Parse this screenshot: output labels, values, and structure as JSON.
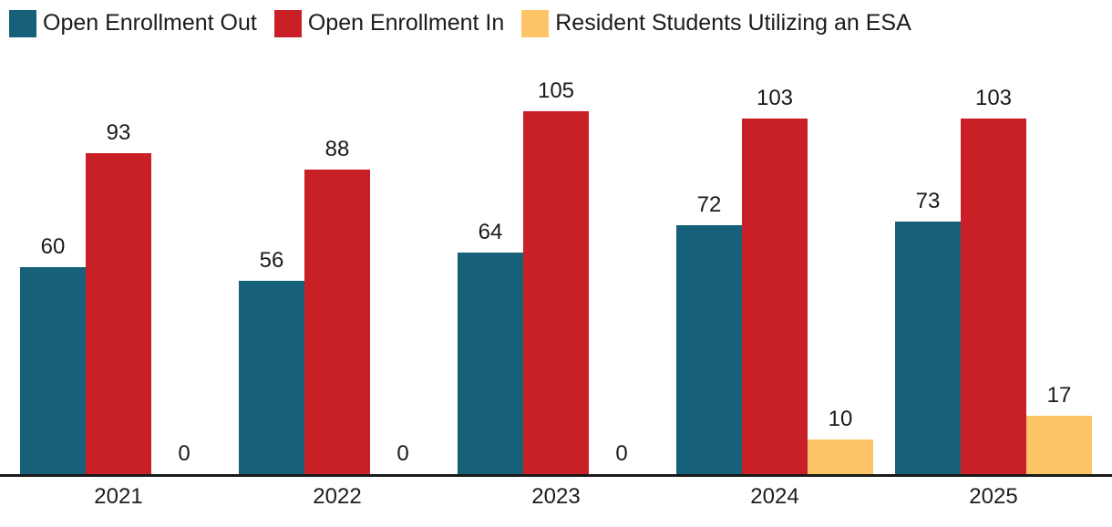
{
  "chart_data": {
    "type": "bar",
    "title": "",
    "xlabel": "",
    "ylabel": "",
    "categories": [
      "2021",
      "2022",
      "2023",
      "2024",
      "2025"
    ],
    "series": [
      {
        "name": "Open Enrollment Out",
        "color": "#16607A",
        "values": [
          60,
          56,
          64,
          72,
          73
        ]
      },
      {
        "name": "Open Enrollment In",
        "color": "#C82026",
        "values": [
          93,
          88,
          105,
          103,
          103
        ]
      },
      {
        "name": "Resident Students Utilizing an ESA",
        "color": "#FDC568",
        "values": [
          0,
          0,
          0,
          10,
          17
        ]
      }
    ],
    "ylim": [
      0,
      105
    ],
    "grid": false,
    "legend_position": "top-left",
    "bar_labels": true,
    "axis_line_color": "#1a1a1a",
    "label_color": "#1a1a1a"
  }
}
